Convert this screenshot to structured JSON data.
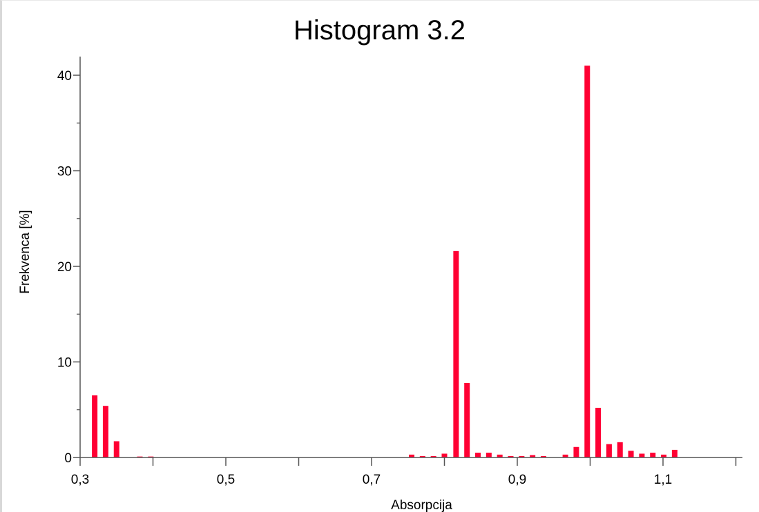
{
  "chart_data": {
    "type": "bar",
    "title": "Histogram 3.2",
    "xlabel": "Absorpcija",
    "ylabel": "Frekvenca [%]",
    "xlim": [
      0.3,
      1.2
    ],
    "ylim": [
      0,
      42
    ],
    "x_ticks": [
      "0,3",
      "0,5",
      "0,7",
      "0,9",
      "1,1"
    ],
    "x_tick_values": [
      0.3,
      0.5,
      0.7,
      0.9,
      1.1
    ],
    "y_ticks": [
      "0",
      "10",
      "20",
      "30",
      "40"
    ],
    "y_tick_values": [
      0,
      10,
      20,
      30,
      40
    ],
    "bar_color": "#ff0033",
    "grid": false,
    "bins": [
      {
        "x": 0.32,
        "value": 6.5
      },
      {
        "x": 0.335,
        "value": 5.4
      },
      {
        "x": 0.35,
        "value": 1.7
      },
      {
        "x": 0.382,
        "value": 0.1
      },
      {
        "x": 0.397,
        "value": 0.1
      },
      {
        "x": 0.755,
        "value": 0.3
      },
      {
        "x": 0.77,
        "value": 0.15
      },
      {
        "x": 0.785,
        "value": 0.15
      },
      {
        "x": 0.8,
        "value": 0.4
      },
      {
        "x": 0.816,
        "value": 21.6
      },
      {
        "x": 0.831,
        "value": 7.8
      },
      {
        "x": 0.846,
        "value": 0.5
      },
      {
        "x": 0.861,
        "value": 0.5
      },
      {
        "x": 0.876,
        "value": 0.3
      },
      {
        "x": 0.891,
        "value": 0.15
      },
      {
        "x": 0.906,
        "value": 0.15
      },
      {
        "x": 0.921,
        "value": 0.25
      },
      {
        "x": 0.936,
        "value": 0.15
      },
      {
        "x": 0.966,
        "value": 0.3
      },
      {
        "x": 0.981,
        "value": 1.1
      },
      {
        "x": 0.996,
        "value": 41.0
      },
      {
        "x": 1.011,
        "value": 5.2
      },
      {
        "x": 1.026,
        "value": 1.4
      },
      {
        "x": 1.041,
        "value": 1.6
      },
      {
        "x": 1.056,
        "value": 0.7
      },
      {
        "x": 1.071,
        "value": 0.4
      },
      {
        "x": 1.086,
        "value": 0.5
      },
      {
        "x": 1.101,
        "value": 0.3
      },
      {
        "x": 1.116,
        "value": 0.8
      }
    ]
  }
}
